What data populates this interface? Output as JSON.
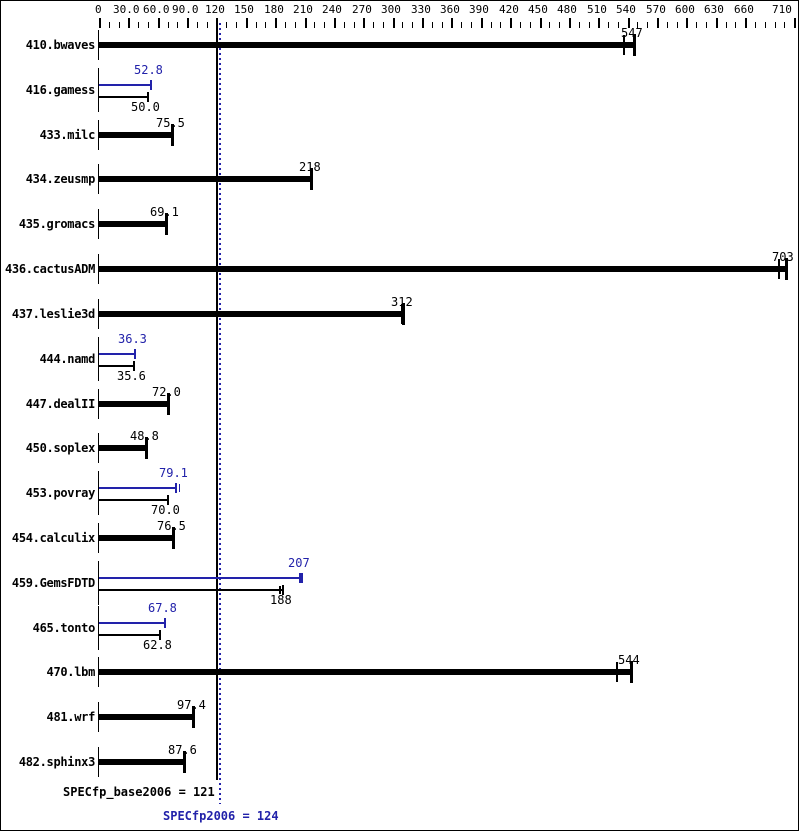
{
  "chart_data": {
    "type": "bar",
    "orientation": "horizontal",
    "legend": "none",
    "grid": false,
    "colors": {
      "base": "#000000",
      "peak": "#2222aa",
      "background": "#ffffff"
    },
    "x_axis": {
      "position": "top",
      "range": [
        0,
        710
      ],
      "minor_tick_interval": 10,
      "major_tick_interval": 30,
      "tick_values": [
        0,
        30,
        60,
        90,
        120,
        150,
        180,
        210,
        240,
        270,
        300,
        330,
        360,
        390,
        420,
        450,
        480,
        510,
        540,
        570,
        600,
        630,
        660,
        710
      ],
      "tick_labels": [
        "0",
        "30.0",
        "60.0",
        "90.0",
        "120",
        "150",
        "180",
        "210",
        "240",
        "270",
        "300",
        "330",
        "360",
        "390",
        "420",
        "450",
        "480",
        "510",
        "540",
        "570",
        "600",
        "630",
        "660",
        "710"
      ]
    },
    "benchmarks": [
      {
        "name": "410.bwaves",
        "base": 547,
        "base_label": "547",
        "base_run_tick": 535
      },
      {
        "name": "416.gamess",
        "peak": 52.8,
        "peak_label": "52.8",
        "base": 50.0,
        "base_label": "50.0"
      },
      {
        "name": "433.milc",
        "base": 75.5,
        "base_label": "75.5"
      },
      {
        "name": "434.zeusmp",
        "base": 218,
        "base_label": "218"
      },
      {
        "name": "435.gromacs",
        "base": 69.1,
        "base_label": "69.1"
      },
      {
        "name": "436.cactusADM",
        "base": 703,
        "base_label": "703",
        "base_run_tick": 694
      },
      {
        "name": "437.leslie3d",
        "base": 312,
        "base_label": "312",
        "base_run_tick": 308
      },
      {
        "name": "444.namd",
        "peak": 36.3,
        "peak_label": "36.3",
        "base": 35.6,
        "base_label": "35.6"
      },
      {
        "name": "447.dealII",
        "base": 72.0,
        "base_label": "72.0"
      },
      {
        "name": "450.soplex",
        "base": 48.8,
        "base_label": "48.8"
      },
      {
        "name": "453.povray",
        "peak": 79.1,
        "peak_label": "79.1",
        "base": 70.0,
        "base_label": "70.0",
        "peak_run_tick": 81.5
      },
      {
        "name": "454.calculix",
        "base": 76.5,
        "base_label": "76.5"
      },
      {
        "name": "459.GemsFDTD",
        "peak": 207,
        "peak_label": "207",
        "base": 188,
        "base_label": "188",
        "base_run_tick": 184,
        "peak_marker": "heavy"
      },
      {
        "name": "465.tonto",
        "peak": 67.8,
        "peak_label": "67.8",
        "base": 62.8,
        "base_label": "62.8"
      },
      {
        "name": "470.lbm",
        "base": 544,
        "base_label": "544",
        "base_run_tick": 528
      },
      {
        "name": "481.wrf",
        "base": 97.4,
        "base_label": "97.4"
      },
      {
        "name": "482.sphinx3",
        "base": 87.6,
        "base_label": "87.6"
      }
    ],
    "reference_lines": [
      {
        "name": "base-mean",
        "value": 121,
        "style": "solid",
        "color": "#000000"
      },
      {
        "name": "peak-mean",
        "value": 124,
        "style": "dotted",
        "color": "#2222aa"
      }
    ],
    "summary": {
      "base": {
        "label": "SPECfp_base2006 = 121",
        "value": 121
      },
      "peak": {
        "label": "SPECfp2006 = 124",
        "value": 124
      }
    }
  }
}
